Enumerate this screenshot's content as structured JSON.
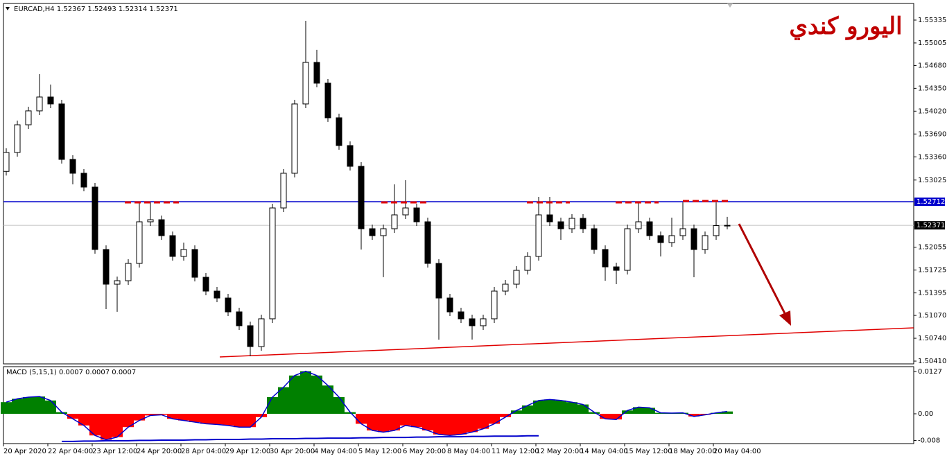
{
  "chart_data": [
    {
      "type": "candlestick",
      "header": "EURCAD,H4  1.52367 1.52493 1.52314 1.52371",
      "title": "اليورو كندي",
      "categories": [
        "20 Apr 2020",
        null,
        null,
        null,
        "22 Apr 04:00",
        null,
        null,
        null,
        "23 Apr 12:00",
        null,
        null,
        null,
        "24 Apr 20:00",
        null,
        null,
        null,
        "28 Apr 04:00",
        null,
        null,
        null,
        "29 Apr 12:00",
        null,
        null,
        null,
        "30 Apr 20:00",
        null,
        null,
        null,
        "4 May 04:00",
        null,
        null,
        null,
        "5 May 12:00",
        null,
        null,
        null,
        "6 May 20:00",
        null,
        null,
        null,
        "8 May 04:00",
        null,
        null,
        null,
        "11 May 12:00",
        null,
        null,
        null,
        "12 May 20:00",
        null,
        null,
        null,
        "14 May 04:00",
        null,
        null,
        null,
        "15 May 12:00",
        null,
        null,
        null,
        "18 May 20:00",
        null,
        null,
        null,
        "20 May 04:00",
        null
      ],
      "open": [
        1.5315,
        1.53423,
        1.53823,
        1.54024,
        1.54224,
        1.54124,
        1.53323,
        1.53123,
        1.52923,
        1.52022,
        1.51521,
        1.51571,
        1.51821,
        1.52422,
        1.52452,
        1.52222,
        1.51922,
        1.52022,
        1.51621,
        1.51421,
        1.51321,
        1.51121,
        1.50921,
        1.5062,
        1.51021,
        1.52622,
        1.53123,
        1.54124,
        1.54724,
        1.54424,
        1.53924,
        1.53523,
        1.53223,
        1.52322,
        1.52222,
        1.52322,
        1.52522,
        1.52622,
        1.52422,
        1.51821,
        1.51321,
        1.51121,
        1.51021,
        1.50921,
        1.51021,
        1.51421,
        1.51521,
        1.51721,
        1.51922,
        1.52522,
        1.52422,
        1.52322,
        1.52472,
        1.52322,
        1.52022,
        1.51771,
        1.51721,
        1.52322,
        1.52422,
        1.52222,
        1.52122,
        1.52222,
        1.52322,
        1.52022,
        1.52222,
        1.52367
      ],
      "high": [
        1.53483,
        1.53883,
        1.54084,
        1.54554,
        1.54404,
        1.54184,
        1.53383,
        1.53183,
        1.52983,
        1.52082,
        1.51631,
        1.51881,
        1.52702,
        1.52702,
        1.52512,
        1.52282,
        1.52122,
        1.52082,
        1.51681,
        1.51481,
        1.51381,
        1.51181,
        1.50981,
        1.51081,
        1.52682,
        1.53183,
        1.54184,
        1.55325,
        1.54905,
        1.54484,
        1.53984,
        1.53583,
        1.53283,
        1.52382,
        1.52382,
        1.52963,
        1.53022,
        1.52682,
        1.52482,
        1.51881,
        1.51381,
        1.51181,
        1.51081,
        1.51081,
        1.51481,
        1.51581,
        1.51781,
        1.51982,
        1.52782,
        1.52782,
        1.52482,
        1.52532,
        1.52532,
        1.52382,
        1.52082,
        1.51831,
        1.52382,
        1.52702,
        1.52482,
        1.52282,
        1.52482,
        1.52702,
        1.52382,
        1.52282,
        1.52702,
        1.52493
      ],
      "low": [
        1.5309,
        1.53363,
        1.53763,
        1.53964,
        1.54064,
        1.53263,
        1.52963,
        1.52863,
        1.51962,
        1.51161,
        1.51122,
        1.51511,
        1.51761,
        1.52362,
        1.52162,
        1.51862,
        1.51862,
        1.51561,
        1.51361,
        1.51261,
        1.51061,
        1.50861,
        1.5048,
        1.5056,
        1.50961,
        1.52562,
        1.53063,
        1.54064,
        1.54364,
        1.53864,
        1.53463,
        1.53163,
        1.52022,
        1.52162,
        1.51622,
        1.52262,
        1.52462,
        1.52362,
        1.51761,
        1.5072,
        1.51061,
        1.50961,
        1.50721,
        1.50861,
        1.50961,
        1.51361,
        1.51461,
        1.51661,
        1.51862,
        1.52362,
        1.52162,
        1.52262,
        1.52262,
        1.51962,
        1.51571,
        1.51521,
        1.51661,
        1.52262,
        1.52162,
        1.51922,
        1.52062,
        1.52162,
        1.51621,
        1.51962,
        1.52162,
        1.52314
      ],
      "close": [
        1.53423,
        1.53823,
        1.54024,
        1.54224,
        1.54124,
        1.53323,
        1.53123,
        1.52923,
        1.52022,
        1.51521,
        1.51571,
        1.51821,
        1.52422,
        1.52452,
        1.52222,
        1.51922,
        1.52022,
        1.51621,
        1.51421,
        1.51321,
        1.51121,
        1.50921,
        1.5062,
        1.51021,
        1.52622,
        1.53123,
        1.54124,
        1.54724,
        1.54424,
        1.53924,
        1.53523,
        1.53223,
        1.52322,
        1.52222,
        1.52322,
        1.52522,
        1.52622,
        1.52422,
        1.51821,
        1.51321,
        1.51121,
        1.51021,
        1.50921,
        1.51021,
        1.51421,
        1.51521,
        1.51721,
        1.51922,
        1.52522,
        1.52422,
        1.52322,
        1.52472,
        1.52322,
        1.52022,
        1.51771,
        1.51721,
        1.52322,
        1.52422,
        1.52222,
        1.52122,
        1.52222,
        1.52322,
        1.52022,
        1.52222,
        1.52367,
        1.52371
      ],
      "up_color": "#ffffff",
      "down_color": "#000000",
      "ylim": [
        1.5037,
        1.55575
      ],
      "yticks": [
        {
          "value": 1.55335,
          "label": "1.55335"
        },
        {
          "value": 1.55005,
          "label": "1.55005"
        },
        {
          "value": 1.5468,
          "label": "1.54680"
        },
        {
          "value": 1.5435,
          "label": "1.54350"
        },
        {
          "value": 1.5402,
          "label": "1.54020"
        },
        {
          "value": 1.5369,
          "label": "1.53690"
        },
        {
          "value": 1.5336,
          "label": "1.53360"
        },
        {
          "value": 1.53025,
          "label": "1.53025"
        },
        {
          "value": 1.52055,
          "label": "1.52055"
        },
        {
          "value": 1.51725,
          "label": "1.51725"
        },
        {
          "value": 1.51395,
          "label": "1.51395"
        },
        {
          "value": 1.5107,
          "label": "1.51070"
        },
        {
          "value": 1.5074,
          "label": "1.50740"
        },
        {
          "value": 1.5041,
          "label": "1.50410"
        }
      ],
      "level_line": {
        "value": 1.52712,
        "label": "1.52712",
        "color": "#0000cc"
      },
      "last_price": {
        "value": 1.52371,
        "label": "1.52371"
      },
      "trendline": {
        "x": [
          19.25,
          81.8
        ],
        "values": [
          1.5047,
          1.5089
        ],
        "color": "#e00000"
      }
    },
    {
      "type": "macd",
      "label": "MACD (5,15,1) 0.0007 0.0007 0.0007",
      "values": [
        0.0035,
        0.0045,
        0.005,
        0.0052,
        0.004,
        0.0005,
        -0.0015,
        -0.0035,
        -0.0065,
        -0.0078,
        -0.007,
        -0.004,
        -0.002,
        -0.0005,
        -0.0003,
        -0.0015,
        -0.002,
        -0.0025,
        -0.003,
        -0.0032,
        -0.0035,
        -0.004,
        -0.004,
        -0.001,
        0.005,
        0.008,
        0.0115,
        0.0128,
        0.0115,
        0.0085,
        0.005,
        0.0005,
        -0.003,
        -0.005,
        -0.0055,
        -0.005,
        -0.0035,
        -0.004,
        -0.005,
        -0.0062,
        -0.0065,
        -0.0062,
        -0.0055,
        -0.0045,
        -0.003,
        -0.001,
        0.001,
        0.0025,
        0.004,
        0.0043,
        0.004,
        0.0035,
        0.0028,
        0.0005,
        -0.0015,
        -0.0017,
        0.001,
        0.002,
        0.0018,
        0.0003,
        0.0002,
        0.0003,
        -0.0008,
        -0.0003,
        0.0003,
        0.0007
      ],
      "signal": [
        null,
        null,
        null,
        null,
        null,
        -0.0083,
        -0.0083,
        -0.0082,
        -0.0082,
        -0.0081,
        -0.0081,
        -0.0081,
        -0.008,
        -0.008,
        -0.0079,
        -0.0079,
        -0.0079,
        -0.0078,
        -0.0078,
        -0.0077,
        -0.0077,
        -0.0077,
        -0.0076,
        -0.0076,
        -0.0075,
        -0.0075,
        -0.0075,
        -0.0074,
        -0.0074,
        -0.0073,
        -0.0073,
        -0.0073,
        -0.0072,
        -0.0072,
        -0.0071,
        -0.0071,
        -0.0071,
        -0.007,
        -0.007,
        -0.0069,
        -0.0069,
        -0.0069,
        -0.0068,
        -0.0068,
        -0.0067,
        -0.0067,
        -0.0067,
        -0.0066,
        -0.0066,
        null,
        null,
        null,
        null,
        null,
        null,
        null,
        null,
        null,
        null,
        null,
        null,
        null,
        null,
        null,
        null,
        null
      ],
      "pos_color": "#008000",
      "neg_color": "#ff0000",
      "line_color": "#0000cc",
      "ylim": [
        -0.00895,
        0.01416
      ],
      "yticks": [
        0.0127,
        {
          "value": 0,
          "label": "0.00"
        },
        -0.008
      ]
    }
  ]
}
